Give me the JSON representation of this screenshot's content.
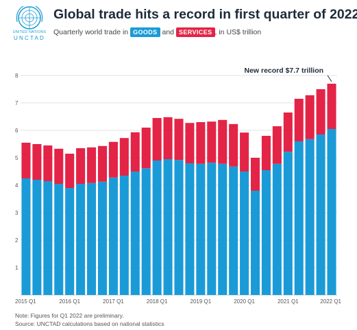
{
  "header": {
    "logo_line1": "UNITED NATIONS",
    "logo_line2": "UNCTAD",
    "title": "Global trade hits a record in first quarter of 2022",
    "subtitle_prefix": "Quarterly world trade in",
    "subtitle_and": "and",
    "goods_label": "GOODS",
    "services_label": "SERVICES",
    "subtitle_suffix": ", in US$ trillion"
  },
  "colors": {
    "goods": "#1a9bd7",
    "services": "#e32447"
  },
  "chart_data": {
    "type": "bar",
    "stacked": true,
    "categories": [
      "2015 Q1",
      "2015 Q2",
      "2015 Q3",
      "2015 Q4",
      "2016 Q1",
      "2016 Q2",
      "2016 Q3",
      "2016 Q4",
      "2017 Q1",
      "2017 Q2",
      "2017 Q3",
      "2017 Q4",
      "2018 Q1",
      "2018 Q2",
      "2018 Q3",
      "2018 Q4",
      "2019 Q1",
      "2019 Q2",
      "2019 Q3",
      "2019 Q4",
      "2020 Q1",
      "2020 Q2",
      "2020 Q3",
      "2020 Q4",
      "2021 Q1",
      "2021 Q2",
      "2021 Q3",
      "2021 Q4",
      "2022 Q1"
    ],
    "x_tick_labels": [
      "2015 Q1",
      "2016 Q1",
      "2017 Q1",
      "2018 Q1",
      "2019 Q1",
      "2020 Q1",
      "2021 Q1",
      "2022 Q1"
    ],
    "series": [
      {
        "name": "GOODS",
        "values": [
          4.25,
          4.2,
          4.15,
          4.05,
          3.9,
          4.05,
          4.08,
          4.13,
          4.28,
          4.35,
          4.5,
          4.62,
          4.9,
          4.95,
          4.92,
          4.8,
          4.78,
          4.82,
          4.78,
          4.68,
          4.5,
          3.8,
          4.55,
          4.78,
          5.22,
          5.6,
          5.68,
          5.85,
          6.05
        ]
      },
      {
        "name": "SERVICES",
        "values": [
          1.3,
          1.3,
          1.3,
          1.28,
          1.25,
          1.3,
          1.3,
          1.3,
          1.3,
          1.37,
          1.43,
          1.48,
          1.55,
          1.53,
          1.5,
          1.47,
          1.52,
          1.5,
          1.6,
          1.55,
          1.42,
          1.2,
          1.25,
          1.37,
          1.43,
          1.55,
          1.6,
          1.65,
          1.65
        ]
      }
    ],
    "yticks": [
      1,
      2,
      3,
      4,
      5,
      6,
      7,
      8
    ],
    "ylim": [
      0,
      8.3
    ],
    "annotation": "New record $7.7 trillion",
    "grid": true
  },
  "notes": {
    "note": "Note: Figures for Q1 2022 are preliminary.",
    "source": "Source: UNCTAD calculations based on national statistics"
  }
}
